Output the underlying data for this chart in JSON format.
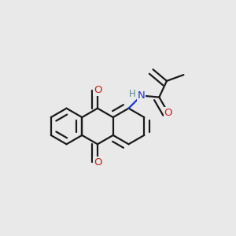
{
  "bg": "#e9e9e9",
  "bc": "#1a1a1a",
  "nc": "#1c34cc",
  "oc": "#cc2020",
  "hc": "#5a8888",
  "bw": 1.6,
  "doff": 0.012,
  "fw": 3.0,
  "fh": 3.0,
  "dpi": 100,
  "xl": [
    0.0,
    1.0
  ],
  "yl": [
    0.0,
    1.0
  ]
}
